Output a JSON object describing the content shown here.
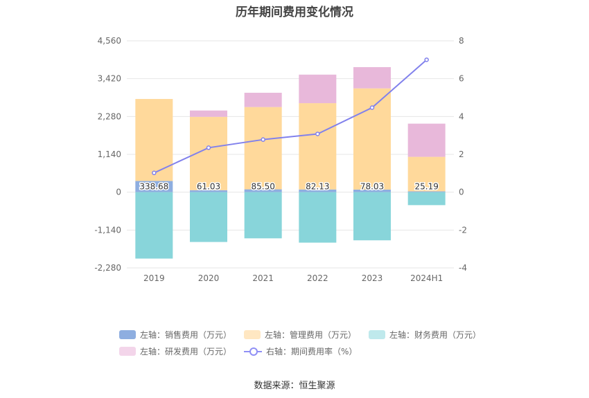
{
  "title": "历年期间费用变化情况",
  "source": "数据来源：恒生聚源",
  "legend": {
    "sales": "左轴：销售费用（万元）",
    "admin": "左轴：管理费用（万元）",
    "finance": "左轴：财务费用（万元）",
    "rd": "左轴：研发费用（万元）",
    "ratio": "右轴：期间费用率（%）"
  },
  "colors": {
    "sales": "#8eaee0",
    "admin": "#ffd99b",
    "finance": "#88d5da",
    "rd": "#e8b8da",
    "ratio": "#8181ec",
    "legend_sales": "#8eaee0",
    "legend_admin": "#ffe7c2",
    "legend_finance": "#bfe9ec",
    "legend_rd": "#f3d5ea"
  },
  "chart_data": {
    "type": "bar",
    "stacked": true,
    "categories": [
      "2019",
      "2020",
      "2021",
      "2022",
      "2023",
      "2024H1"
    ],
    "left_axis": {
      "min": -2280,
      "max": 4560,
      "ticks": [
        -2280,
        -1140,
        0,
        1140,
        2280,
        3420,
        4560
      ],
      "tick_labels": [
        "-2,280",
        "-1,140",
        "0",
        "1,140",
        "2,280",
        "3,420",
        "4,560"
      ]
    },
    "right_axis": {
      "min": -4,
      "max": 8,
      "ticks": [
        -4,
        -2,
        0,
        2,
        4,
        6,
        8
      ],
      "tick_labels": [
        "-4",
        "-2",
        "0",
        "2",
        "4",
        "6",
        "8"
      ]
    },
    "series": [
      {
        "key": "sales",
        "name": "左轴：销售费用（万元）",
        "axis": "left",
        "values": [
          338.68,
          61.03,
          85.5,
          82.13,
          78.03,
          25.19
        ],
        "labels": [
          "338.68",
          "61.03",
          "85.50",
          "82.13",
          "78.03",
          "25.19"
        ]
      },
      {
        "key": "admin",
        "name": "左轴：管理费用（万元）",
        "axis": "left",
        "values": [
          2470,
          2210,
          2480,
          2600,
          3050,
          1040
        ]
      },
      {
        "key": "finance",
        "name": "左轴：财务费用（万元）",
        "axis": "left",
        "values": [
          -2000,
          -1500,
          -1390,
          -1520,
          -1450,
          -390
        ]
      },
      {
        "key": "rd",
        "name": "左轴：研发费用（万元）",
        "axis": "left",
        "values": [
          0,
          190,
          430,
          860,
          640,
          1000
        ]
      },
      {
        "key": "ratio",
        "name": "右轴：期间费用率（%）",
        "axis": "right",
        "type": "line",
        "values": [
          1.02,
          2.35,
          2.78,
          3.08,
          4.47,
          7.0
        ]
      }
    ],
    "grid": true,
    "legend_position": "bottom"
  }
}
